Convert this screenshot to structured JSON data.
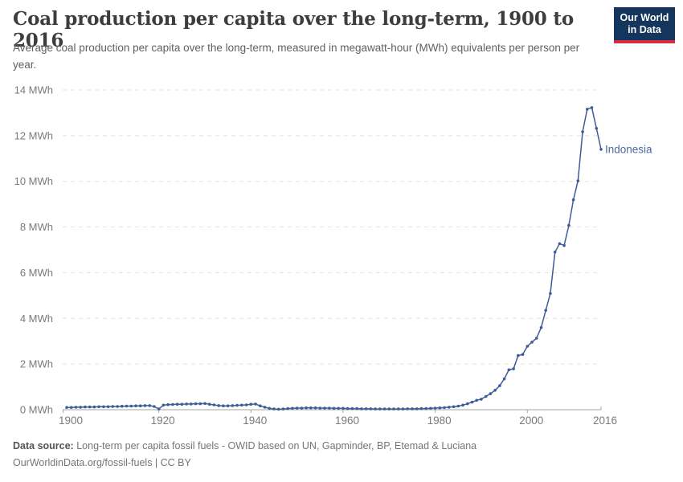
{
  "header": {
    "title": "Coal production per capita over the long-term, 1900 to 2016",
    "subtitle": "Average coal production per capita over the long-term, measured in megawatt-hour (MWh) equivalents per person per year.",
    "logo": {
      "line1": "Our World",
      "line2": "in Data"
    }
  },
  "chart_data": {
    "type": "line",
    "title": "Coal production per capita over the long-term, 1900 to 2016",
    "xlabel": "",
    "ylabel": "MWh",
    "xlim": [
      1900,
      2016
    ],
    "ylim": [
      0,
      14
    ],
    "grid": "horizontal-dashed",
    "legend_position": "end-of-line-label",
    "x_ticks": [
      1900,
      1920,
      1940,
      1960,
      1980,
      2000,
      2016
    ],
    "y_ticks": [
      0,
      2,
      4,
      6,
      8,
      10,
      12,
      14
    ],
    "y_tick_suffix": " MWh",
    "line_color": "#3e5c97",
    "label_color": "#4c669f",
    "series": [
      {
        "name": "Indonesia",
        "x": [
          1900,
          1901,
          1902,
          1903,
          1904,
          1905,
          1906,
          1907,
          1908,
          1909,
          1910,
          1911,
          1912,
          1913,
          1914,
          1915,
          1916,
          1917,
          1918,
          1919,
          1920,
          1921,
          1922,
          1923,
          1924,
          1925,
          1926,
          1927,
          1928,
          1929,
          1930,
          1931,
          1932,
          1933,
          1934,
          1935,
          1936,
          1937,
          1938,
          1939,
          1940,
          1941,
          1942,
          1943,
          1944,
          1945,
          1946,
          1947,
          1948,
          1949,
          1950,
          1951,
          1952,
          1953,
          1954,
          1955,
          1956,
          1957,
          1958,
          1959,
          1960,
          1961,
          1962,
          1963,
          1964,
          1965,
          1966,
          1967,
          1968,
          1969,
          1970,
          1971,
          1972,
          1973,
          1974,
          1975,
          1976,
          1977,
          1978,
          1979,
          1980,
          1981,
          1982,
          1983,
          1984,
          1985,
          1986,
          1987,
          1988,
          1989,
          1990,
          1991,
          1992,
          1993,
          1994,
          1995,
          1996,
          1997,
          1998,
          1999,
          2000,
          2001,
          2002,
          2003,
          2004,
          2005,
          2006,
          2007,
          2008,
          2009,
          2010,
          2011,
          2012,
          2013,
          2014,
          2015,
          2016
        ],
        "values": [
          0.1,
          0.1,
          0.11,
          0.11,
          0.12,
          0.12,
          0.12,
          0.13,
          0.13,
          0.13,
          0.14,
          0.14,
          0.15,
          0.16,
          0.16,
          0.17,
          0.17,
          0.18,
          0.18,
          0.14,
          0.03,
          0.2,
          0.22,
          0.23,
          0.24,
          0.24,
          0.25,
          0.25,
          0.26,
          0.26,
          0.27,
          0.24,
          0.21,
          0.18,
          0.17,
          0.17,
          0.18,
          0.19,
          0.2,
          0.21,
          0.24,
          0.25,
          0.17,
          0.11,
          0.06,
          0.03,
          0.02,
          0.03,
          0.05,
          0.06,
          0.07,
          0.07,
          0.08,
          0.08,
          0.08,
          0.07,
          0.07,
          0.07,
          0.06,
          0.06,
          0.06,
          0.05,
          0.05,
          0.05,
          0.04,
          0.04,
          0.04,
          0.03,
          0.03,
          0.03,
          0.03,
          0.03,
          0.03,
          0.03,
          0.04,
          0.04,
          0.04,
          0.05,
          0.05,
          0.06,
          0.07,
          0.08,
          0.09,
          0.11,
          0.13,
          0.16,
          0.2,
          0.26,
          0.33,
          0.41,
          0.46,
          0.58,
          0.7,
          0.85,
          1.05,
          1.35,
          1.75,
          1.79,
          2.37,
          2.42,
          2.78,
          2.96,
          3.13,
          3.6,
          4.35,
          5.09,
          6.9,
          7.27,
          7.19,
          8.07,
          9.19,
          10.02,
          12.17,
          13.16,
          13.23,
          12.32,
          11.4
        ]
      }
    ]
  },
  "footer": {
    "source_label": "Data source:",
    "source_text": " Long-term per capita fossil fuels - OWID based on UN, Gapminder, BP, Etemad & Luciana",
    "license_line": "OurWorldinData.org/fossil-fuels | CC BY"
  }
}
